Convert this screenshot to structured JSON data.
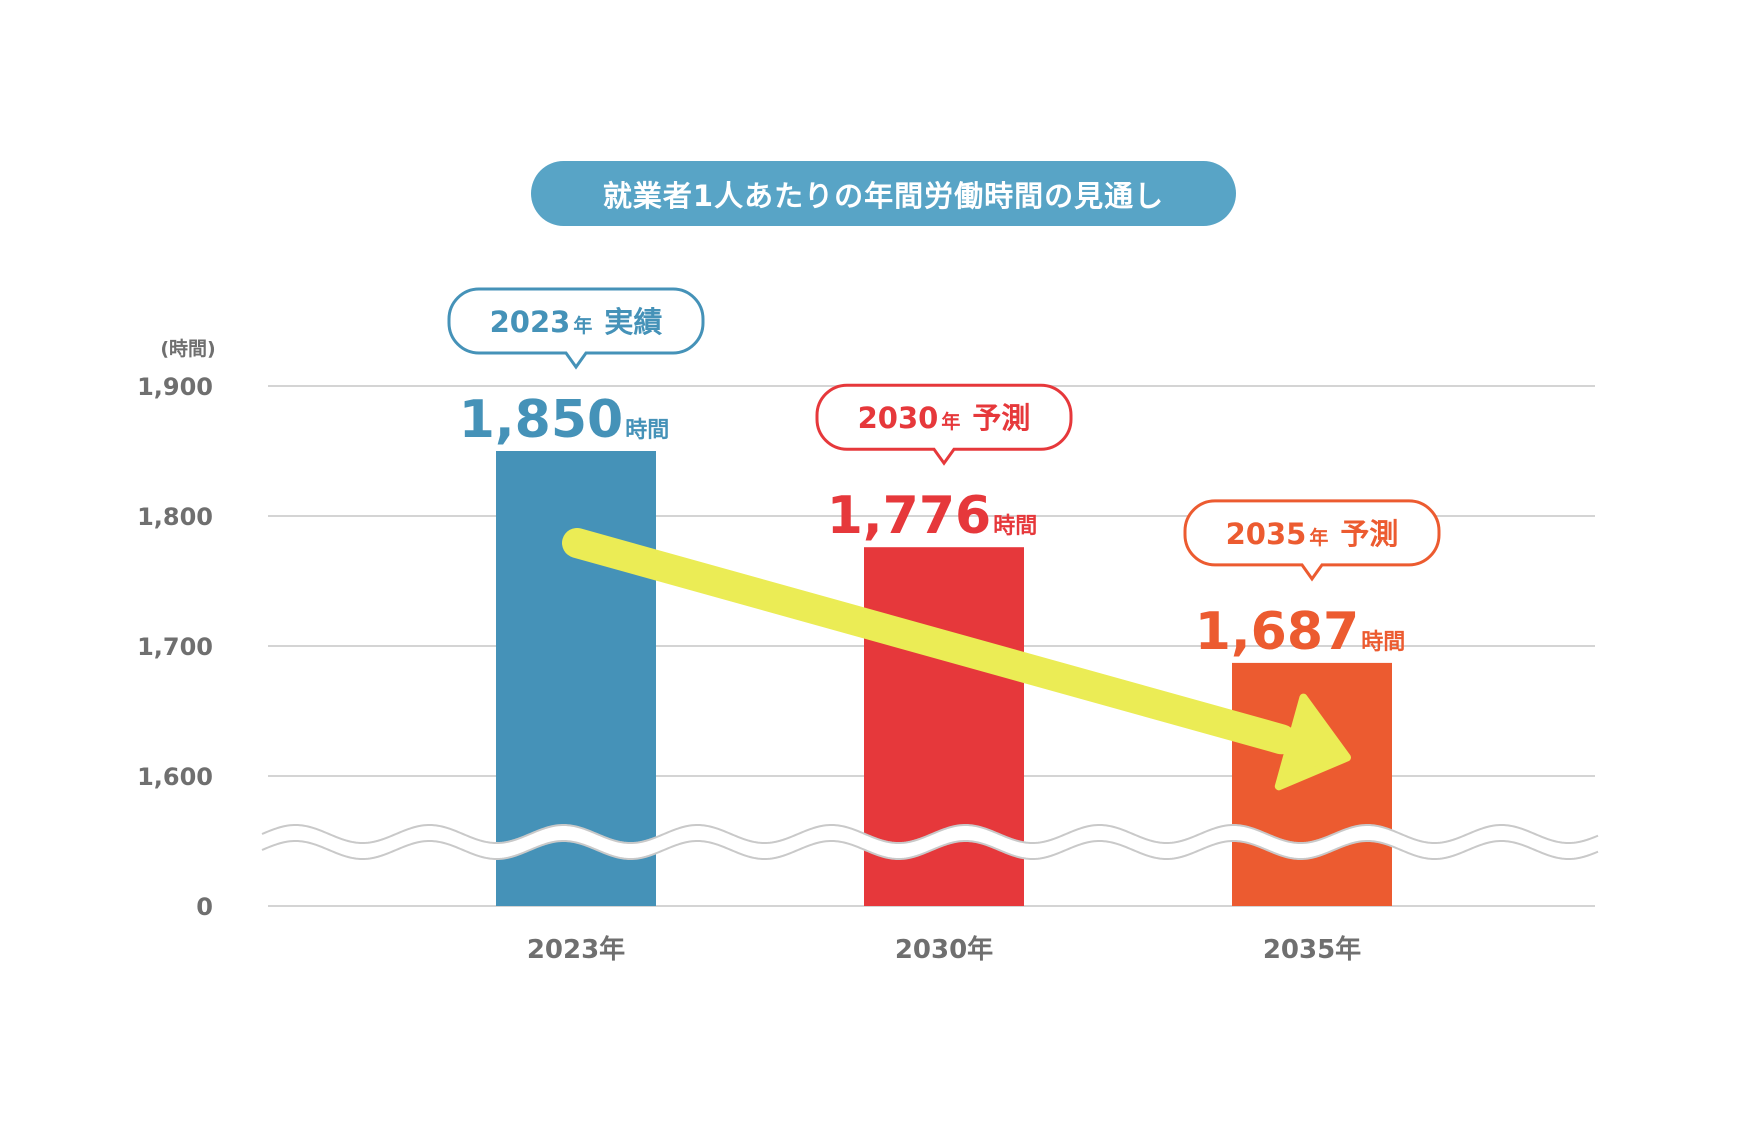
{
  "chart_data": {
    "type": "bar",
    "title": "就業者1人あたりの年間労働時間の見通し",
    "ylabel": "(時間)",
    "y_ticks": [
      "1,900",
      "1,800",
      "1,700",
      "1,600",
      "0"
    ],
    "y_tick_values": [
      1900,
      1800,
      1700,
      1600,
      0
    ],
    "ylim": [
      0,
      1900
    ],
    "axis_break": "between 0 and 1,600",
    "grid": true,
    "categories": [
      "2023年",
      "2030年",
      "2035年"
    ],
    "values": [
      1850,
      1776,
      1687
    ],
    "value_labels": [
      "1,850",
      "1,776",
      "1,687"
    ],
    "value_unit": "時間",
    "callouts": [
      {
        "year": "2023",
        "year_unit": "年",
        "kind": "実績",
        "color": "#4592b8"
      },
      {
        "year": "2030",
        "year_unit": "年",
        "kind": "予測",
        "color": "#e6383b"
      },
      {
        "year": "2035",
        "year_unit": "年",
        "kind": "予測",
        "color": "#ec5b30"
      }
    ],
    "bar_colors": [
      "#4592b8",
      "#e6383b",
      "#ec5b30"
    ],
    "trend_arrow_color": "#ebec55",
    "trend": "decreasing"
  }
}
